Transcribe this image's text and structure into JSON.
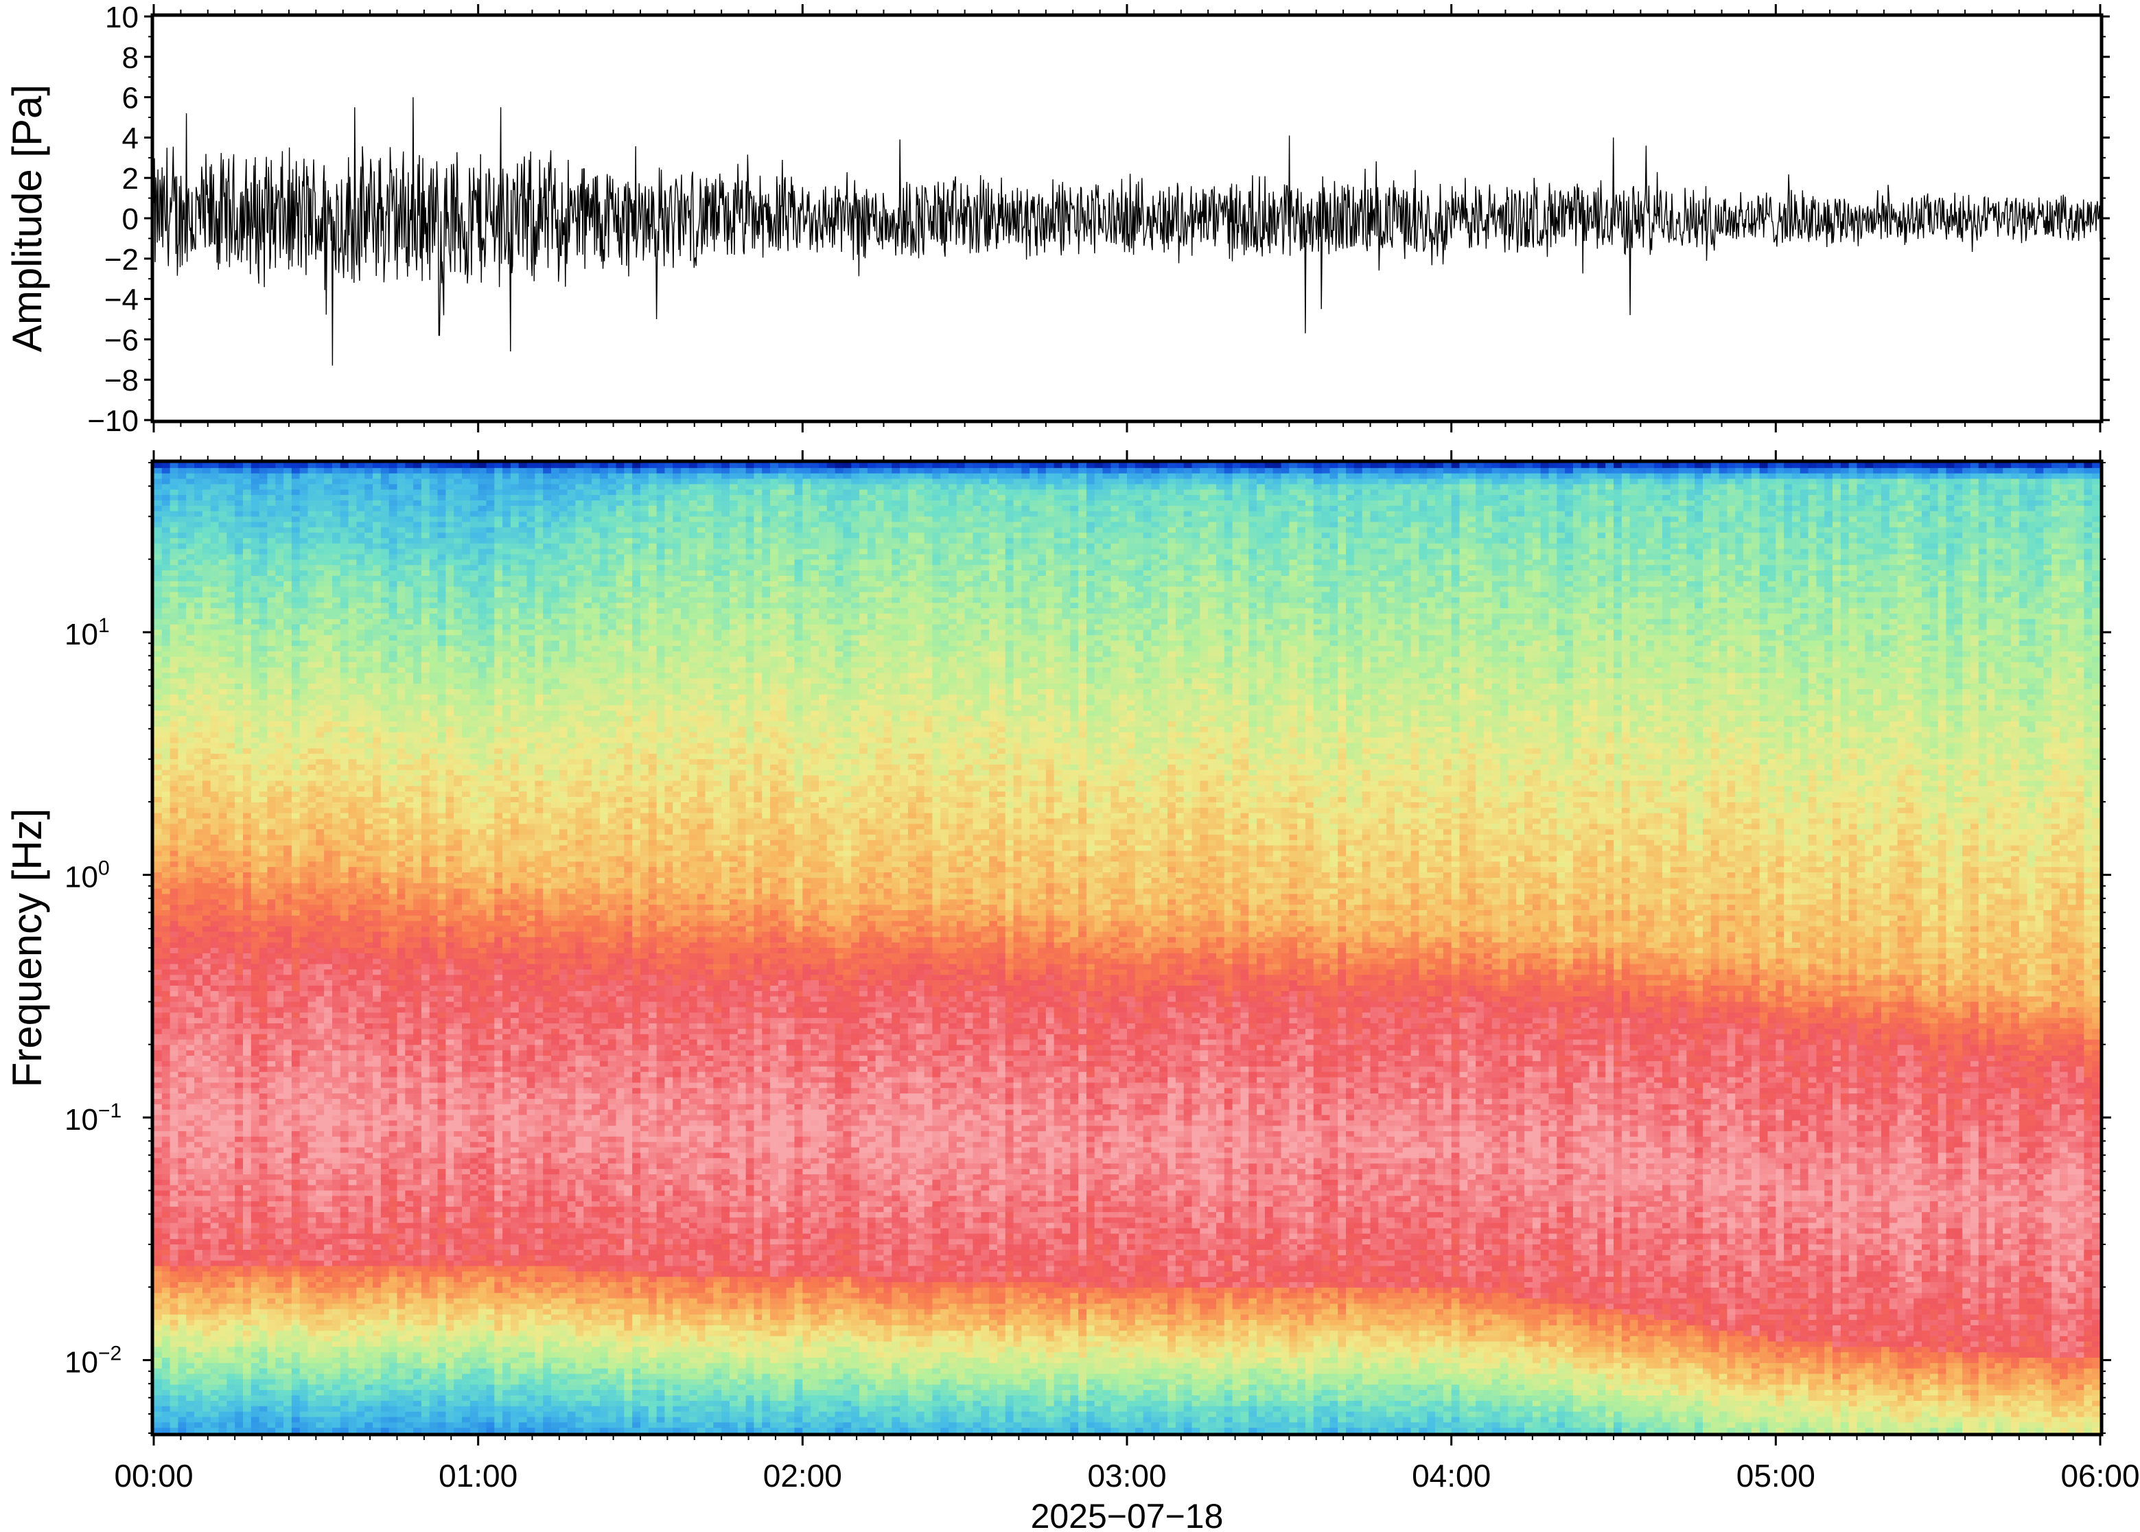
{
  "chart_data": [
    {
      "type": "line",
      "panel": "waveform",
      "ylabel": "Amplitude [Pa]",
      "ylim": [
        -10,
        10
      ],
      "yticks": [
        10,
        8,
        6,
        4,
        2,
        0,
        -2,
        -4,
        -6,
        -8,
        -10
      ],
      "ytick_labels": [
        "10",
        "8",
        "6",
        "4",
        "2",
        "0",
        "−2",
        "−4",
        "−6",
        "−8",
        "−10"
      ],
      "xlim_hours": [
        0,
        6
      ],
      "line_color": "#000000",
      "envelope_description_hours": [
        0,
        0.5,
        1.0,
        1.5,
        2.0,
        2.5,
        3.0,
        3.5,
        4.0,
        4.5,
        5.0,
        5.5,
        6.0
      ],
      "envelope_amplitude": [
        3.5,
        3.8,
        4.0,
        3.0,
        2.2,
        2.4,
        2.0,
        2.3,
        2.0,
        2.0,
        1.6,
        1.4,
        1.2
      ],
      "peak_hours": [
        0.1,
        0.55,
        0.62,
        0.8,
        0.88,
        1.07,
        1.1,
        1.55,
        2.3,
        3.5,
        3.55,
        3.6,
        4.5,
        4.55,
        4.6
      ],
      "peak_values": [
        5.2,
        -7.3,
        5.5,
        6.0,
        -5.8,
        5.5,
        -6.6,
        -5.0,
        3.9,
        4.1,
        -5.7,
        -4.5,
        4.0,
        -4.8,
        3.6
      ]
    },
    {
      "type": "heatmap",
      "panel": "spectrogram",
      "ylabel": "Frequency [Hz]",
      "yscale": "log",
      "ylim_hz": [
        0.005,
        50
      ],
      "yticks_hz": [
        10,
        1,
        0.1,
        0.01
      ],
      "ytick_label_base": "10",
      "ytick_label_exponents": [
        "1",
        "0",
        "−1",
        "−2"
      ],
      "xlim_hours": [
        0,
        6
      ],
      "colormap_stops": [
        "#00006e",
        "#0a3cd2",
        "#2a8de8",
        "#46bde6",
        "#6fe0c8",
        "#b6f09a",
        "#f0ea8a",
        "#f8b860",
        "#f87a50",
        "#f05860",
        "#f8a6aa"
      ],
      "boundary_hz_time_hours": [
        0,
        1,
        1.7,
        2,
        3,
        4,
        5,
        6
      ],
      "cyan_to_green_boundary_hz": [
        22,
        18,
        40,
        40,
        38,
        40,
        42,
        42
      ],
      "yellow_to_orange_boundary_hz": [
        1.3,
        1.0,
        0.9,
        0.8,
        0.7,
        0.6,
        0.45,
        0.3
      ],
      "red_band_top_hz": [
        0.45,
        0.4,
        0.33,
        0.35,
        0.3,
        0.3,
        0.22,
        0.15
      ],
      "red_band_bottom_hz": [
        0.025,
        0.025,
        0.022,
        0.022,
        0.02,
        0.02,
        0.012,
        0.01
      ]
    }
  ],
  "xaxis": {
    "ticks_hours": [
      0,
      1,
      2,
      3,
      4,
      5,
      6
    ],
    "tick_labels": [
      "00:00",
      "01:00",
      "02:00",
      "03:00",
      "04:00",
      "05:00",
      "06:00"
    ],
    "date_label": "2025−07−18"
  }
}
